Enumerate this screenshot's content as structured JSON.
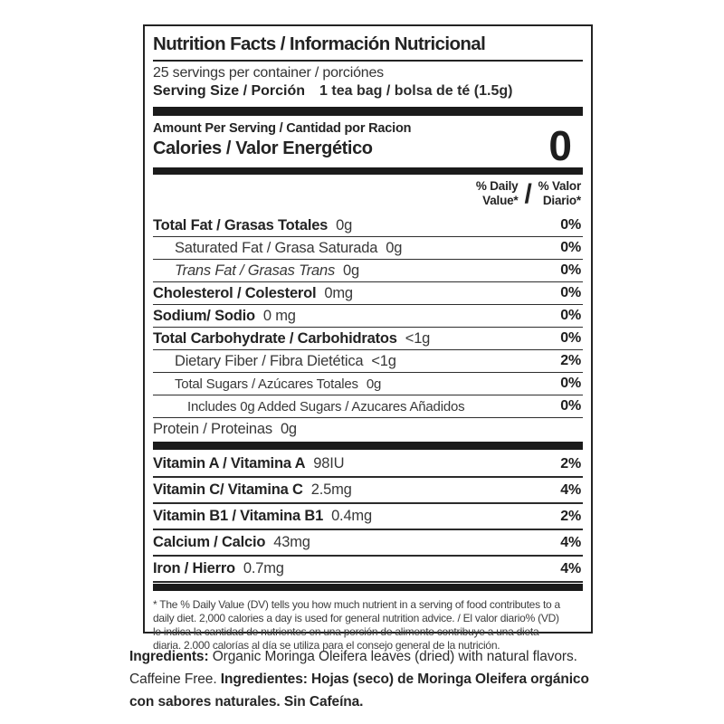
{
  "label": {
    "title": "Nutrition Facts / Información Nutricional",
    "servings": "25 servings per container / porciónes",
    "serving_size_label": "Serving Size / Porción",
    "serving_size_value": "1 tea bag / bolsa de té (1.5g)",
    "amount_per_serving": "Amount Per Serving / Cantidad por Racion",
    "calories_label": "Calories / Valor Energético",
    "calories_value": "0",
    "dv_header": {
      "en1": "% Daily",
      "en2": "Value*",
      "slash": "/",
      "es1": "% Valor",
      "es2": "Diario*"
    },
    "nutrients": [
      {
        "name": "Total Fat / Grasas Totales",
        "amount": "0g",
        "dv": "0%"
      },
      {
        "name": "Saturated Fat / Grasa Saturada",
        "amount": "0g",
        "dv": "0%"
      },
      {
        "name": "Trans Fat / Grasas Trans",
        "amount": "0g",
        "dv": "0%"
      },
      {
        "name": "Cholesterol / Colesterol",
        "amount": "0mg",
        "dv": "0%"
      },
      {
        "name": "Sodium/ Sodio",
        "amount": "0 mg",
        "dv": "0%"
      },
      {
        "name": "Total Carbohydrate / Carbohidratos",
        "amount": "<1g",
        "dv": "0%"
      },
      {
        "name": "Dietary Fiber / Fibra Dietética",
        "amount": "<1g",
        "dv": "2%"
      },
      {
        "name": "Total Sugars / Azúcares Totales",
        "amount": "0g",
        "dv": "0%"
      },
      {
        "name": "Includes 0g Added Sugars / Azucares Añadidos",
        "amount": "",
        "dv": "0%"
      },
      {
        "name": "Protein / Proteinas",
        "amount": "0g",
        "dv": ""
      }
    ],
    "vitamins": [
      {
        "name": "Vitamin A / Vitamina A",
        "amount": "98IU",
        "dv": "2%"
      },
      {
        "name": "Vitamin C/ Vitamina C",
        "amount": "2.5mg",
        "dv": "4%"
      },
      {
        "name": "Vitamin B1 / Vitamina B1",
        "amount": "0.4mg",
        "dv": "2%"
      },
      {
        "name": "Calcium / Calcio",
        "amount": "43mg",
        "dv": "4%"
      },
      {
        "name": "Iron / Hierro",
        "amount": "0.7mg",
        "dv": "4%"
      }
    ],
    "footnote": {
      "line1": "* The % Daily Value (DV) tells you how much nutrient in a serving of food contributes to a",
      "line2": "daily diet. 2,000 calories a day is used for general nutrition advice. / El valor diario% (VD)",
      "line3": "le indica la cantidad de nutrientes en una porción de alimento contribuye a una dieta",
      "line4": "diaria. 2.000 calorías al día se utiliza para el consejo general de la nutrición."
    }
  },
  "ingredients": {
    "line1_bold": "Ingredients:",
    "line1_text": " Organic Moringa Oleifera leaves (dried) with natural flavors.",
    "line2_text": "Caffeine Free.  ",
    "line2_bold": "Ingredientes:",
    "line2_text2": " Hojas (seco) de Moringa Oleifera orgánico",
    "line3_text": "con sabores naturales. Sin Cafeína."
  }
}
